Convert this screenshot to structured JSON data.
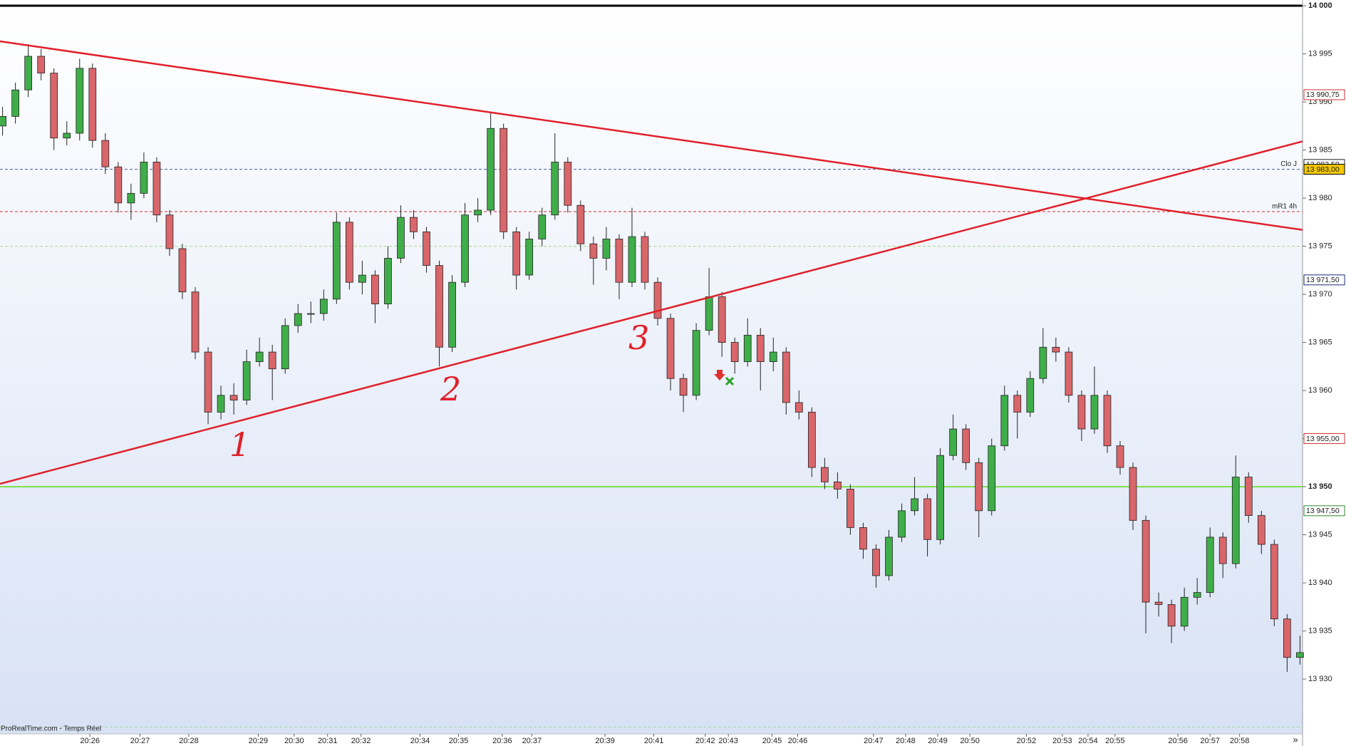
{
  "chart_data": {
    "type": "candlestick",
    "up_color": "#3fae49",
    "down_color": "#d9666a",
    "open": [
      13987.5,
      13988.5,
      13991.25,
      13994.75,
      13993,
      13986.25,
      13986.75,
      13993.5,
      13986,
      13983.25,
      13979.5,
      13980.5,
      13983.75,
      13978.25,
      13974.75,
      13970.25,
      13964,
      13957.75,
      13959.5,
      13959,
      13963,
      13964,
      13962.25,
      13966.75,
      13968,
      13968,
      13969.5,
      13977.5,
      13971.25,
      13972,
      13969,
      13973.75,
      13978,
      13976.5,
      13973,
      13964.5,
      13971.25,
      13978.25,
      13978.75,
      13987.25,
      13976.5,
      13972,
      13975.75,
      13978.25,
      13983.75,
      13979.25,
      13975.25,
      13973.75,
      13975.75,
      13971.25,
      13976,
      13971.25,
      13967.5,
      13961.25,
      13959.5,
      13966.25,
      13969.75,
      13965,
      13963,
      13965.75,
      13963,
      13964,
      13958.75,
      13957.75,
      13952,
      13950.5,
      13949.75,
      13945.75,
      13943.5,
      13940.75,
      13944.75,
      13947.5,
      13948.75,
      13944.5,
      13953.25,
      13956,
      13952.5,
      13947.5,
      13954.25,
      13959.5,
      13957.75,
      13961.25,
      13964.5,
      13964,
      13959.5,
      13956,
      13959.5,
      13954.25,
      13952,
      13946.5,
      13938,
      13937.75,
      13935.5,
      13938.5,
      13939,
      13944.75,
      13942,
      13951,
      13947,
      13944,
      13936.25,
      13932.25
    ],
    "high": [
      13989.5,
      13992,
      13996,
      13995.5,
      13993.5,
      13988,
      13994.5,
      13994,
      13986.75,
      13983.75,
      13981.5,
      13984.75,
      13984.25,
      13978.75,
      13975.25,
      13970.75,
      13964.5,
      13960.5,
      13960.75,
      13964.25,
      13965.5,
      13964.75,
      13967.5,
      13969,
      13969.25,
      13970.5,
      13978.5,
      13978,
      13973.5,
      13972.5,
      13975,
      13979.25,
      13978.75,
      13977,
      13973.5,
      13972,
      13979.5,
      13980,
      13989,
      13987.75,
      13977,
      13976.5,
      13979,
      13986.75,
      13984.25,
      13979.75,
      13976,
      13977,
      13976.25,
      13979,
      13976.5,
      13971.75,
      13968,
      13961.75,
      13967,
      13972.75,
      13970.25,
      13965.5,
      13967.5,
      13966.5,
      13965.5,
      13964.5,
      13960,
      13958.25,
      13953,
      13951.5,
      13950.25,
      13946.25,
      13944,
      13945.5,
      13948.25,
      13951,
      13949.25,
      13954,
      13957.5,
      13956.5,
      13953,
      13955,
      13960.5,
      13960,
      13962,
      13966.5,
      13965.5,
      13964.5,
      13960,
      13962.5,
      13960,
      13954.75,
      13952.5,
      13947,
      13939,
      13938.25,
      13939.5,
      13940.5,
      13945.75,
      13945.25,
      13953.25,
      13951.5,
      13947.5,
      13944.5,
      13936.75,
      13934.5
    ],
    "low": [
      13986.5,
      13987.75,
      13990.5,
      13992.25,
      13985,
      13985.5,
      13986,
      13985.25,
      13982.5,
      13978.5,
      13977.75,
      13980,
      13977.5,
      13974,
      13969.5,
      13963.25,
      13956.5,
      13957,
      13957.5,
      13958.5,
      13962.5,
      13959,
      13961.75,
      13966,
      13967,
      13967.25,
      13969,
      13970.5,
      13970,
      13967,
      13968.5,
      13973.25,
      13975.75,
      13972.25,
      13962.5,
      13964,
      13970.75,
      13977.5,
      13978.25,
      13975.75,
      13970.5,
      13971.5,
      13975,
      13977.75,
      13978.5,
      13974.5,
      13971,
      13972.5,
      13969.5,
      13970.75,
      13970.5,
      13966.75,
      13960,
      13957.75,
      13959,
      13965.75,
      13963.5,
      13961.75,
      13962.5,
      13960,
      13962,
      13957.5,
      13957,
      13951,
      13949.75,
      13948.75,
      13945,
      13942.5,
      13939.5,
      13940.25,
      13944.25,
      13947,
      13942.75,
      13944,
      13952.75,
      13951.75,
      13944.75,
      13947,
      13953.75,
      13955,
      13957.25,
      13960.75,
      13963,
      13958.75,
      13954.75,
      13955.5,
      13953.5,
      13951.25,
      13945.5,
      13934.75,
      13936.5,
      13933.75,
      13935,
      13937.75,
      13938.5,
      13940.5,
      13941.5,
      13946.25,
      13943,
      13935.5,
      13930.75,
      13931.5
    ],
    "close": [
      13988.5,
      13991.25,
      13994.75,
      13993,
      13986.25,
      13986.75,
      13993.5,
      13986,
      13983.25,
      13979.5,
      13980.5,
      13983.75,
      13978.25,
      13974.75,
      13970.25,
      13964,
      13957.75,
      13959.5,
      13959,
      13963,
      13964,
      13962.25,
      13966.75,
      13968,
      13968,
      13969.5,
      13977.5,
      13971.25,
      13972,
      13969,
      13973.75,
      13978,
      13976.5,
      13973,
      13964.5,
      13971.25,
      13978.25,
      13978.75,
      13987.25,
      13976.5,
      13972,
      13975.75,
      13978.25,
      13983.75,
      13979.25,
      13975.25,
      13973.75,
      13975.75,
      13971.25,
      13976,
      13971.25,
      13967.5,
      13961.25,
      13959.5,
      13966.25,
      13969.75,
      13965,
      13963,
      13965.75,
      13963,
      13964,
      13958.75,
      13957.75,
      13952,
      13950.5,
      13949.75,
      13945.75,
      13943.5,
      13940.75,
      13944.75,
      13947.5,
      13948.75,
      13944.5,
      13953.25,
      13956,
      13952.5,
      13947.5,
      13954.25,
      13959.5,
      13957.75,
      13961.25,
      13964.5,
      13964,
      13959.5,
      13956,
      13959.5,
      13954.25,
      13952,
      13946.5,
      13938,
      13937.75,
      13935.5,
      13938.5,
      13939,
      13944.75,
      13942,
      13951,
      13947,
      13944,
      13936.25,
      13932.25,
      13932.75
    ],
    "xlim": [
      -0.2,
      101.2
    ],
    "xticks": [
      {
        "value": 6.8,
        "label": "20:26"
      },
      {
        "value": 10.7,
        "label": "20:27"
      },
      {
        "value": 14.5,
        "label": "20:28"
      },
      {
        "value": 19.9,
        "label": "20:29"
      },
      {
        "value": 22.7,
        "label": "20:30"
      },
      {
        "value": 25.3,
        "label": "20:31"
      },
      {
        "value": 27.9,
        "label": "20:32"
      },
      {
        "value": 32.5,
        "label": "20:34"
      },
      {
        "value": 35.5,
        "label": "20:35"
      },
      {
        "value": 38.9,
        "label": "20:36"
      },
      {
        "value": 41.2,
        "label": "20:37"
      },
      {
        "value": 46.9,
        "label": "20:39"
      },
      {
        "value": 50.7,
        "label": "20:41"
      },
      {
        "value": 54.7,
        "label": "20:42"
      },
      {
        "value": 56.5,
        "label": "20:43"
      },
      {
        "value": 59.9,
        "label": "20:45"
      },
      {
        "value": 61.9,
        "label": "20:46"
      },
      {
        "value": 67.8,
        "label": "20:47"
      },
      {
        "value": 70.3,
        "label": "20:48"
      },
      {
        "value": 72.8,
        "label": "20:49"
      },
      {
        "value": 75.3,
        "label": "20:50"
      },
      {
        "value": 79.7,
        "label": "20:52"
      },
      {
        "value": 82.5,
        "label": "20:53"
      },
      {
        "value": 84.5,
        "label": "20:54"
      },
      {
        "value": 86.6,
        "label": "20:55"
      },
      {
        "value": 91.5,
        "label": "20:56"
      },
      {
        "value": 94,
        "label": "20:57"
      },
      {
        "value": 96.3,
        "label": "20:58"
      }
    ],
    "ylim": [
      13924.3,
      14000.6
    ],
    "yticks": [
      {
        "value": 14000,
        "label": "14 000",
        "bold": true
      },
      {
        "value": 13995,
        "label": "13 995"
      },
      {
        "value": 13990,
        "label": "13 990"
      },
      {
        "value": 13985,
        "label": "13 985"
      },
      {
        "value": 13980,
        "label": "13 980"
      },
      {
        "value": 13975,
        "label": "13 975"
      },
      {
        "value": 13970,
        "label": "13 970"
      },
      {
        "value": 13965,
        "label": "13 965"
      },
      {
        "value": 13960,
        "label": "13 960"
      },
      {
        "value": 13955,
        "label": "13 955"
      },
      {
        "value": 13950,
        "label": "13 950",
        "bold": true
      },
      {
        "value": 13945,
        "label": "13 945"
      },
      {
        "value": 13940,
        "label": "13 940"
      },
      {
        "value": 13935,
        "label": "13 935"
      },
      {
        "value": 13930,
        "label": "13 930"
      }
    ],
    "grid": false,
    "price_labels": [
      {
        "value": 13990.75,
        "label": "13 990,75",
        "color": "#d03030",
        "fill": "#ffffff"
      },
      {
        "value": 13983.5,
        "label": "13 983,50",
        "color": "#222222",
        "fill": "#ffffff"
      },
      {
        "value": 13983,
        "label": "13 983,00",
        "color": "#000000",
        "fill": "#f5c800"
      },
      {
        "value": 13971.5,
        "label": "13 971,50",
        "color": "#1a2a7a",
        "fill": "#ffffff"
      },
      {
        "value": 13955,
        "label": "13 955,00",
        "color": "#d03030",
        "fill": "#ffffff"
      },
      {
        "value": 13947.5,
        "label": "13 947,50",
        "color": "#2a8a2a",
        "fill": "#ffffff"
      }
    ],
    "levels": [
      {
        "value": 13983,
        "label": "Clo J",
        "color": "#4a5a9a",
        "style": "dashed"
      },
      {
        "value": 13978.6,
        "label": "mR1 4h",
        "color": "#d03030",
        "style": "dashed"
      },
      {
        "value": 13975,
        "color": "#a8d878",
        "style": "dashed"
      },
      {
        "value": 13950,
        "color": "#7be04a",
        "style": "solid"
      },
      {
        "value": 13925,
        "color": "#a8d8a0",
        "style": "dashed"
      }
    ],
    "trendlines": [
      {
        "from": [
          -0.2,
          13996.3
        ],
        "to": [
          101.2,
          13976.7
        ],
        "color": "#e0202a"
      },
      {
        "from": [
          -0.2,
          13950.3
        ],
        "to": [
          101.2,
          13985.9
        ],
        "color": "#e0202a"
      }
    ],
    "annotations": [
      "1",
      "2",
      "3"
    ],
    "footer": "ProRealTime.com - Temps Réel",
    "nav_button": "»"
  }
}
